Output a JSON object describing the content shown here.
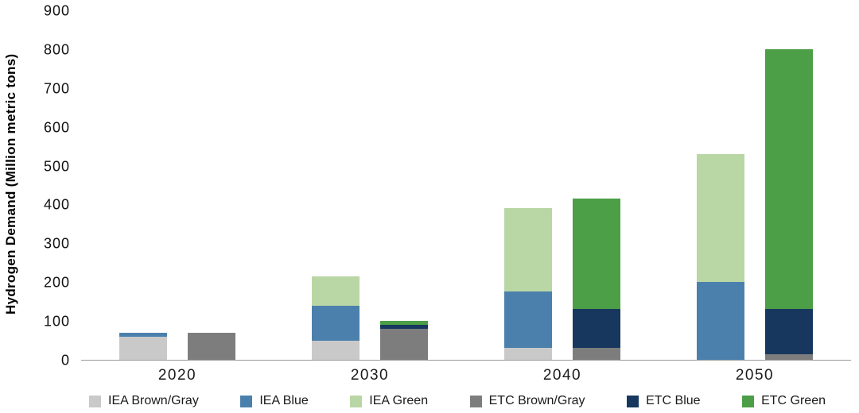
{
  "chart_data": {
    "type": "bar",
    "stacked": true,
    "title": "",
    "xlabel": "",
    "ylabel": "Hydrogen Demand (Million metric tons)",
    "ylim": [
      0,
      900
    ],
    "yticks": [
      0,
      100,
      200,
      300,
      400,
      500,
      600,
      700,
      800,
      900
    ],
    "categories": [
      "2020",
      "2030",
      "2040",
      "2050"
    ],
    "groups": [
      {
        "name": "IEA",
        "segments": [
          {
            "name": "IEA Brown/Gray",
            "color": "#c9c9c9",
            "values": [
              60,
              50,
              30,
              0
            ]
          },
          {
            "name": "IEA Blue",
            "color": "#4b80ad",
            "values": [
              10,
              90,
              145,
              200
            ]
          },
          {
            "name": "IEA Green",
            "color": "#b9d6a5",
            "values": [
              0,
              75,
              215,
              330
            ]
          }
        ]
      },
      {
        "name": "ETC",
        "segments": [
          {
            "name": "ETC Brown/Gray",
            "color": "#7d7d7d",
            "values": [
              70,
              80,
              30,
              15
            ]
          },
          {
            "name": "ETC Blue",
            "color": "#17375e",
            "values": [
              0,
              10,
              100,
              115
            ]
          },
          {
            "name": "ETC Green",
            "color": "#4c9e47",
            "values": [
              0,
              10,
              285,
              670
            ]
          }
        ]
      }
    ],
    "legend": [
      "IEA Brown/Gray",
      "IEA Blue",
      "IEA Green",
      "ETC Brown/Gray",
      "ETC Blue",
      "ETC Green"
    ],
    "legend_position": "bottom",
    "grid": false
  }
}
